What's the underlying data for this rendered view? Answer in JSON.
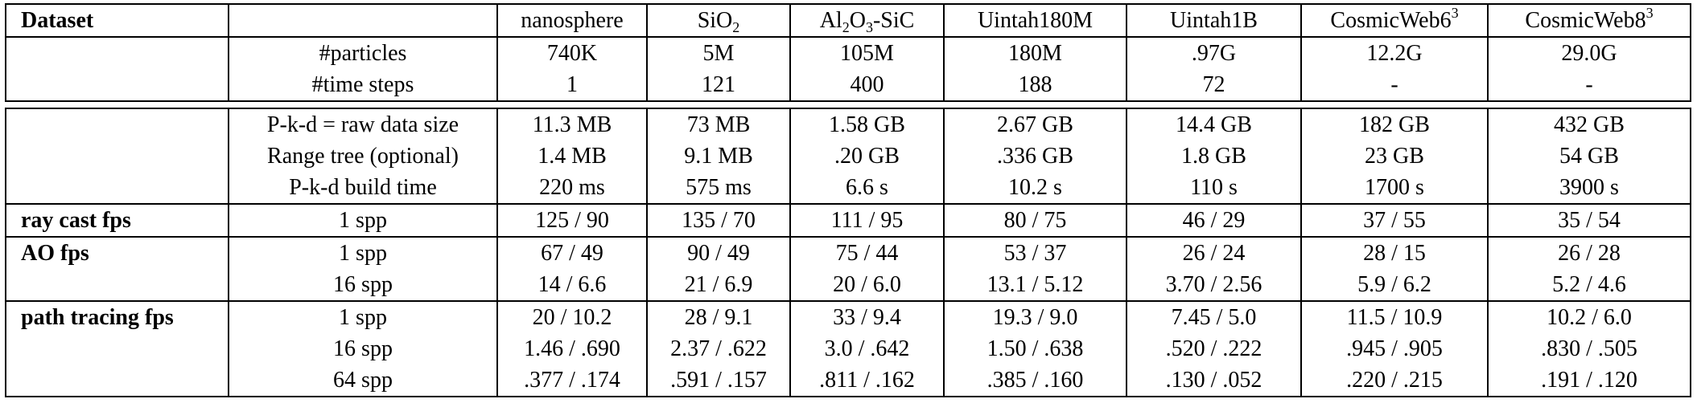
{
  "header": {
    "dataset_label": "Dataset",
    "columns": [
      {
        "base": "nanosphere"
      },
      {
        "base": "SiO",
        "sub": "2"
      },
      {
        "base": "Al",
        "sub": "2",
        "mid": "O",
        "sub2": "3",
        "tail": "-SiC"
      },
      {
        "base": "Uintah180M"
      },
      {
        "base": "Uintah1B"
      },
      {
        "base": "CosmicWeb6",
        "sup": "3"
      },
      {
        "base": "CosmicWeb8",
        "sup": "3"
      }
    ]
  },
  "rows": {
    "particles": {
      "label": "#particles",
      "values": [
        "740K",
        "5M",
        "105M",
        "180M",
        ".97G",
        "12.2G",
        "29.0G"
      ]
    },
    "timesteps": {
      "label": "#time steps",
      "values": [
        "1",
        "121",
        "400",
        "188",
        "72",
        "-",
        "-"
      ]
    },
    "raw_size": {
      "label": "P-k-d = raw data size",
      "values": [
        "11.3 MB",
        "73 MB",
        "1.58 GB",
        "2.67 GB",
        "14.4 GB",
        "182 GB",
        "432 GB"
      ]
    },
    "range_tree": {
      "label": "Range tree (optional)",
      "values": [
        "1.4 MB",
        "9.1 MB",
        ".20 GB",
        ".336 GB",
        "1.8 GB",
        "23 GB",
        "54 GB"
      ]
    },
    "build_time": {
      "label": "P-k-d build time",
      "values": [
        "220 ms",
        "575 ms",
        "6.6 s",
        "10.2 s",
        "110 s",
        "1700 s",
        "3900 s"
      ]
    },
    "raycast_1": {
      "group": "ray cast fps",
      "label": "1 spp",
      "values": [
        "125 / 90",
        "135 / 70",
        "111 / 95",
        "80 / 75",
        "46 / 29",
        "37 / 55",
        "35 / 54"
      ]
    },
    "ao_1": {
      "group": "AO fps",
      "label": "1 spp",
      "values": [
        "67 / 49",
        "90 / 49",
        "75 / 44",
        "53 / 37",
        "26 / 24",
        "28 / 15",
        "26 / 28"
      ]
    },
    "ao_16": {
      "label": "16 spp",
      "values": [
        "14 / 6.6",
        "21 / 6.9",
        "20 / 6.0",
        "13.1 / 5.12",
        "3.70 / 2.56",
        "5.9 / 6.2",
        "5.2 / 4.6"
      ]
    },
    "pt_1": {
      "group": "path tracing fps",
      "label": "1 spp",
      "values": [
        "20 / 10.2",
        "28 / 9.1",
        "33 / 9.4",
        "19.3 / 9.0",
        "7.45 / 5.0",
        "11.5 / 10.9",
        "10.2 / 6.0"
      ]
    },
    "pt_16": {
      "label": "16 spp",
      "values": [
        "1.46 / .690",
        "2.37 / .622",
        "3.0 / .642",
        "1.50 / .638",
        ".520 / .222",
        ".945 / .905",
        ".830 / .505"
      ]
    },
    "pt_64": {
      "label": "64 spp",
      "values": [
        ".377 / .174",
        ".591 / .157",
        ".811 / .162",
        ".385 / .160",
        ".130 / .052",
        ".220 / .215",
        ".191 / .120"
      ]
    }
  }
}
